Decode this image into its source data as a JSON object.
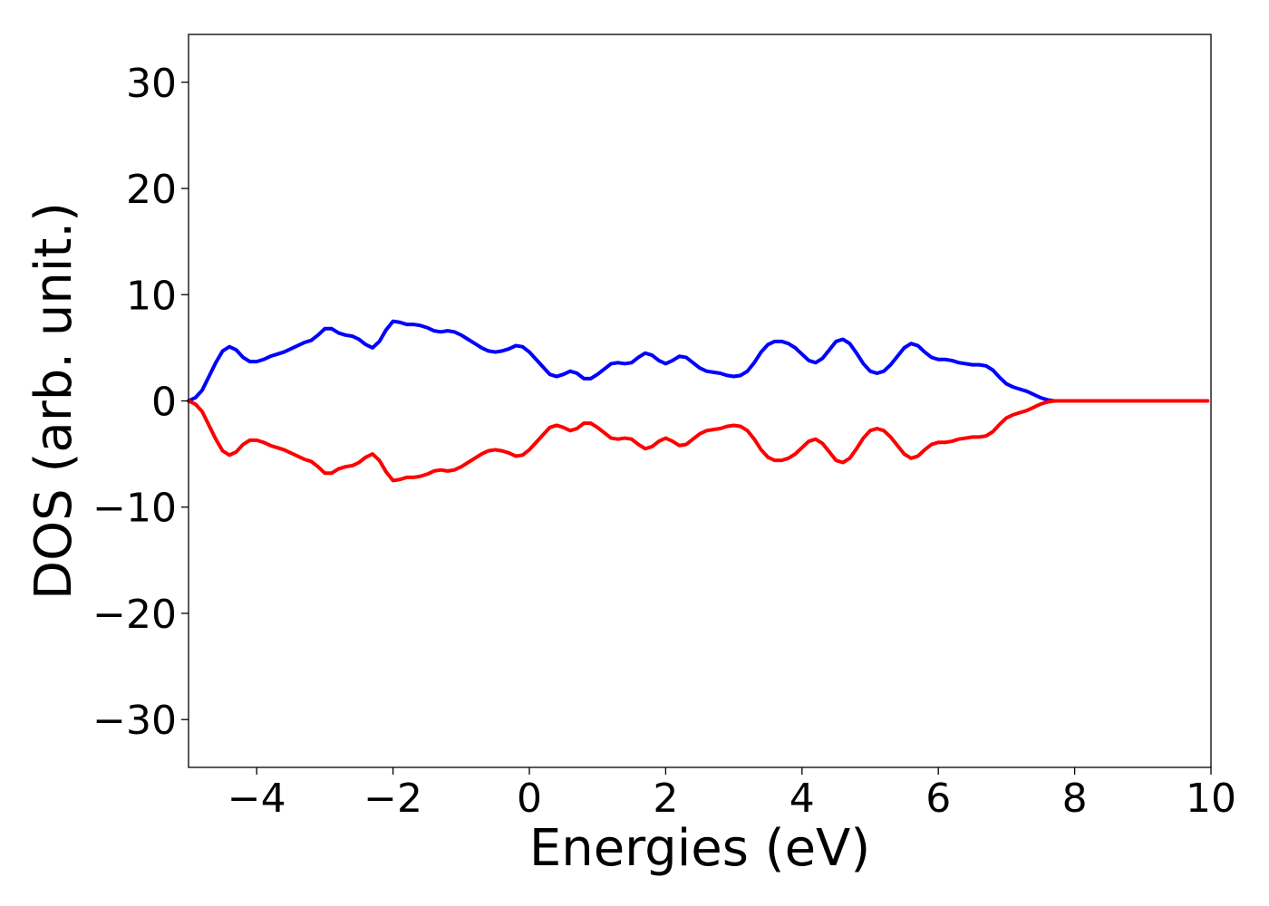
{
  "chart_data": {
    "type": "line",
    "title": "",
    "xlabel": "Energies (eV)",
    "ylabel": "DOS (arb. unit.)",
    "xlim": [
      -5,
      10
    ],
    "ylim": [
      -34.5,
      34.5
    ],
    "xticks": [
      -4,
      -2,
      0,
      2,
      4,
      6,
      8,
      10
    ],
    "xtick_labels": [
      "−4",
      "−2",
      "0",
      "2",
      "4",
      "6",
      "8",
      "10"
    ],
    "yticks": [
      30,
      20,
      10,
      0,
      -10,
      -20,
      -30
    ],
    "ytick_labels": [
      "30",
      "20",
      "10",
      "0",
      "−10",
      "−20",
      "−30"
    ],
    "grid": false,
    "legend": "none",
    "series": [
      {
        "color": "#0000ff",
        "x": [
          -5.0,
          -4.9,
          -4.8,
          -4.7,
          -4.6,
          -4.5,
          -4.4,
          -4.3,
          -4.2,
          -4.1,
          -4.0,
          -3.9,
          -3.8,
          -3.7,
          -3.6,
          -3.5,
          -3.4,
          -3.3,
          -3.2,
          -3.1,
          -3.0,
          -2.9,
          -2.8,
          -2.7,
          -2.6,
          -2.5,
          -2.4,
          -2.3,
          -2.2,
          -2.1,
          -2.0,
          -1.9,
          -1.8,
          -1.7,
          -1.6,
          -1.5,
          -1.4,
          -1.3,
          -1.2,
          -1.1,
          -1.0,
          -0.9,
          -0.8,
          -0.7,
          -0.6,
          -0.5,
          -0.4,
          -0.3,
          -0.2,
          -0.1,
          0.0,
          0.1,
          0.2,
          0.3,
          0.4,
          0.5,
          0.6,
          0.7,
          0.8,
          0.9,
          1.0,
          1.1,
          1.2,
          1.3,
          1.4,
          1.5,
          1.6,
          1.7,
          1.8,
          1.9,
          2.0,
          2.1,
          2.2,
          2.3,
          2.4,
          2.5,
          2.6,
          2.7,
          2.8,
          2.9,
          3.0,
          3.1,
          3.2,
          3.3,
          3.4,
          3.5,
          3.6,
          3.7,
          3.8,
          3.9,
          4.0,
          4.1,
          4.2,
          4.3,
          4.4,
          4.5,
          4.6,
          4.7,
          4.8,
          4.9,
          5.0,
          5.1,
          5.2,
          5.3,
          5.4,
          5.5,
          5.6,
          5.7,
          5.8,
          5.9,
          6.0,
          6.1,
          6.2,
          6.3,
          6.4,
          6.5,
          6.6,
          6.7,
          6.8,
          6.9,
          7.0,
          7.1,
          7.2,
          7.3,
          7.4,
          7.5,
          7.6,
          7.7,
          7.8,
          8.0,
          8.5,
          9.0,
          9.5,
          9.95
        ],
        "y": [
          0.0,
          0.3,
          1.0,
          2.3,
          3.6,
          4.7,
          5.1,
          4.8,
          4.1,
          3.7,
          3.7,
          3.9,
          4.2,
          4.4,
          4.6,
          4.9,
          5.2,
          5.5,
          5.7,
          6.2,
          6.8,
          6.8,
          6.4,
          6.2,
          6.1,
          5.8,
          5.3,
          5.0,
          5.6,
          6.7,
          7.5,
          7.4,
          7.2,
          7.2,
          7.1,
          6.9,
          6.6,
          6.5,
          6.6,
          6.5,
          6.2,
          5.8,
          5.4,
          5.0,
          4.7,
          4.6,
          4.7,
          4.9,
          5.2,
          5.1,
          4.6,
          3.9,
          3.2,
          2.5,
          2.3,
          2.5,
          2.8,
          2.6,
          2.1,
          2.1,
          2.5,
          3.0,
          3.5,
          3.6,
          3.5,
          3.6,
          4.1,
          4.5,
          4.3,
          3.8,
          3.5,
          3.8,
          4.2,
          4.1,
          3.6,
          3.1,
          2.8,
          2.7,
          2.6,
          2.4,
          2.3,
          2.4,
          2.8,
          3.6,
          4.6,
          5.3,
          5.6,
          5.6,
          5.4,
          5.0,
          4.4,
          3.8,
          3.6,
          4.0,
          4.8,
          5.6,
          5.8,
          5.4,
          4.5,
          3.5,
          2.8,
          2.6,
          2.8,
          3.4,
          4.2,
          5.0,
          5.4,
          5.2,
          4.6,
          4.1,
          3.9,
          3.9,
          3.8,
          3.6,
          3.5,
          3.4,
          3.4,
          3.3,
          2.9,
          2.2,
          1.6,
          1.3,
          1.1,
          0.9,
          0.6,
          0.3,
          0.1,
          0.0,
          0.0,
          0.0,
          0.0,
          0.0,
          0.0,
          0.0
        ]
      },
      {
        "color": "#ff0000",
        "x": [
          -5.0,
          -4.9,
          -4.8,
          -4.7,
          -4.6,
          -4.5,
          -4.4,
          -4.3,
          -4.2,
          -4.1,
          -4.0,
          -3.9,
          -3.8,
          -3.7,
          -3.6,
          -3.5,
          -3.4,
          -3.3,
          -3.2,
          -3.1,
          -3.0,
          -2.9,
          -2.8,
          -2.7,
          -2.6,
          -2.5,
          -2.4,
          -2.3,
          -2.2,
          -2.1,
          -2.0,
          -1.9,
          -1.8,
          -1.7,
          -1.6,
          -1.5,
          -1.4,
          -1.3,
          -1.2,
          -1.1,
          -1.0,
          -0.9,
          -0.8,
          -0.7,
          -0.6,
          -0.5,
          -0.4,
          -0.3,
          -0.2,
          -0.1,
          0.0,
          0.1,
          0.2,
          0.3,
          0.4,
          0.5,
          0.6,
          0.7,
          0.8,
          0.9,
          1.0,
          1.1,
          1.2,
          1.3,
          1.4,
          1.5,
          1.6,
          1.7,
          1.8,
          1.9,
          2.0,
          2.1,
          2.2,
          2.3,
          2.4,
          2.5,
          2.6,
          2.7,
          2.8,
          2.9,
          3.0,
          3.1,
          3.2,
          3.3,
          3.4,
          3.5,
          3.6,
          3.7,
          3.8,
          3.9,
          4.0,
          4.1,
          4.2,
          4.3,
          4.4,
          4.5,
          4.6,
          4.7,
          4.8,
          4.9,
          5.0,
          5.1,
          5.2,
          5.3,
          5.4,
          5.5,
          5.6,
          5.7,
          5.8,
          5.9,
          6.0,
          6.1,
          6.2,
          6.3,
          6.4,
          6.5,
          6.6,
          6.7,
          6.8,
          6.9,
          7.0,
          7.1,
          7.2,
          7.3,
          7.4,
          7.5,
          7.6,
          7.7,
          7.8,
          8.0,
          8.5,
          9.0,
          9.5,
          9.95
        ],
        "y": [
          0.0,
          -0.3,
          -1.0,
          -2.3,
          -3.6,
          -4.7,
          -5.1,
          -4.8,
          -4.1,
          -3.7,
          -3.7,
          -3.9,
          -4.2,
          -4.4,
          -4.6,
          -4.9,
          -5.2,
          -5.5,
          -5.7,
          -6.2,
          -6.8,
          -6.8,
          -6.4,
          -6.2,
          -6.1,
          -5.8,
          -5.3,
          -5.0,
          -5.6,
          -6.7,
          -7.5,
          -7.4,
          -7.2,
          -7.2,
          -7.1,
          -6.9,
          -6.6,
          -6.5,
          -6.6,
          -6.5,
          -6.2,
          -5.8,
          -5.4,
          -5.0,
          -4.7,
          -4.6,
          -4.7,
          -4.9,
          -5.2,
          -5.1,
          -4.6,
          -3.9,
          -3.2,
          -2.5,
          -2.3,
          -2.5,
          -2.8,
          -2.6,
          -2.1,
          -2.1,
          -2.5,
          -3.0,
          -3.5,
          -3.6,
          -3.5,
          -3.6,
          -4.1,
          -4.5,
          -4.3,
          -3.8,
          -3.5,
          -3.8,
          -4.2,
          -4.1,
          -3.6,
          -3.1,
          -2.8,
          -2.7,
          -2.6,
          -2.4,
          -2.3,
          -2.4,
          -2.8,
          -3.6,
          -4.6,
          -5.3,
          -5.6,
          -5.6,
          -5.4,
          -5.0,
          -4.4,
          -3.8,
          -3.6,
          -4.0,
          -4.8,
          -5.6,
          -5.8,
          -5.4,
          -4.5,
          -3.5,
          -2.8,
          -2.6,
          -2.8,
          -3.4,
          -4.2,
          -5.0,
          -5.4,
          -5.2,
          -4.6,
          -4.1,
          -3.9,
          -3.9,
          -3.8,
          -3.6,
          -3.5,
          -3.4,
          -3.4,
          -3.3,
          -2.9,
          -2.2,
          -1.6,
          -1.3,
          -1.1,
          -0.9,
          -0.6,
          -0.3,
          -0.1,
          0.0,
          0.0,
          0.0,
          0.0,
          0.0,
          0.0,
          0.0
        ]
      }
    ]
  }
}
